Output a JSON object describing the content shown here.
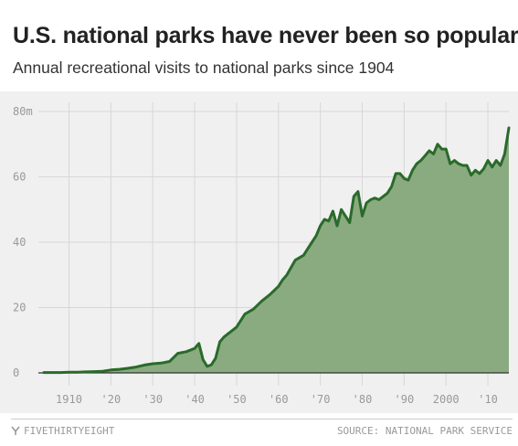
{
  "header": {
    "title": "U.S. national parks have never been so popular",
    "subtitle": "Annual recreational visits to national parks since 1904"
  },
  "footer": {
    "brand": "FIVETHIRTYEIGHT",
    "brand_icon": "fivethirtyeight-logo-icon",
    "source": "SOURCE: NATIONAL PARK SERVICE"
  },
  "colors": {
    "fill": "#8aab80",
    "line": "#2a6a2a",
    "grid": "#d7d7d7",
    "background": "#f0f0f0"
  },
  "chart_data": {
    "type": "area",
    "title": "U.S. national parks have never been so popular",
    "subtitle": "Annual recreational visits to national parks since 1904",
    "ylabel": "",
    "xlabel": "",
    "ylim": [
      0,
      80
    ],
    "xlim": [
      1904,
      2015
    ],
    "y_ticks": [
      {
        "value": 80,
        "label": "80m"
      },
      {
        "value": 60,
        "label": "60"
      },
      {
        "value": 40,
        "label": "40"
      },
      {
        "value": 20,
        "label": "20"
      },
      {
        "value": 0,
        "label": "0"
      }
    ],
    "x_ticks": [
      {
        "value": 1910,
        "label": "1910"
      },
      {
        "value": 1920,
        "label": "'20"
      },
      {
        "value": 1930,
        "label": "'30"
      },
      {
        "value": 1940,
        "label": "'40"
      },
      {
        "value": 1950,
        "label": "'50"
      },
      {
        "value": 1960,
        "label": "'60"
      },
      {
        "value": 1970,
        "label": "'70"
      },
      {
        "value": 1980,
        "label": "'80"
      },
      {
        "value": 1990,
        "label": "'90"
      },
      {
        "value": 2000,
        "label": "2000"
      },
      {
        "value": 2010,
        "label": "'10"
      }
    ],
    "grid": true,
    "series": [
      {
        "x": [
          1904,
          1906,
          1908,
          1910,
          1912,
          1914,
          1916,
          1918,
          1920,
          1922,
          1924,
          1926,
          1928,
          1930,
          1932,
          1934,
          1936,
          1938,
          1940,
          1941,
          1942,
          1943,
          1944,
          1945,
          1946,
          1947,
          1948,
          1950,
          1952,
          1954,
          1956,
          1958,
          1960,
          1961,
          1962,
          1964,
          1966,
          1967,
          1968,
          1969,
          1970,
          1971,
          1972,
          1973,
          1974,
          1975,
          1976,
          1977,
          1978,
          1979,
          1980,
          1981,
          1982,
          1983,
          1984,
          1985,
          1986,
          1987,
          1988,
          1989,
          1990,
          1991,
          1992,
          1993,
          1994,
          1995,
          1996,
          1997,
          1998,
          1999,
          2000,
          2001,
          2002,
          2003,
          2004,
          2005,
          2006,
          2007,
          2008,
          2009,
          2010,
          2011,
          2012,
          2013,
          2014,
          2015
        ],
        "values": [
          0.1,
          0.1,
          0.1,
          0.2,
          0.2,
          0.3,
          0.4,
          0.5,
          0.9,
          1.1,
          1.4,
          1.8,
          2.4,
          2.8,
          3.0,
          3.5,
          6.0,
          6.5,
          7.5,
          9.0,
          4.0,
          2.0,
          2.5,
          4.5,
          9.5,
          11.0,
          12.0,
          14.0,
          18.0,
          19.5,
          22.0,
          24.0,
          26.5,
          28.5,
          30.0,
          34.5,
          36.0,
          38.0,
          40.0,
          42.0,
          45.0,
          47.0,
          46.5,
          49.5,
          45.0,
          50.0,
          48.0,
          46.0,
          54.0,
          55.5,
          48.0,
          52.0,
          53.0,
          53.5,
          53.0,
          54.0,
          55.0,
          57.0,
          61.0,
          61.0,
          59.5,
          59.0,
          62.0,
          64.0,
          65.0,
          66.5,
          68.0,
          67.0,
          70.0,
          68.5,
          68.5,
          64.0,
          65.0,
          64.0,
          63.5,
          63.5,
          60.5,
          62.0,
          61.0,
          62.5,
          65.0,
          63.0,
          65.0,
          63.5,
          67.0,
          75.0
        ]
      }
    ]
  }
}
